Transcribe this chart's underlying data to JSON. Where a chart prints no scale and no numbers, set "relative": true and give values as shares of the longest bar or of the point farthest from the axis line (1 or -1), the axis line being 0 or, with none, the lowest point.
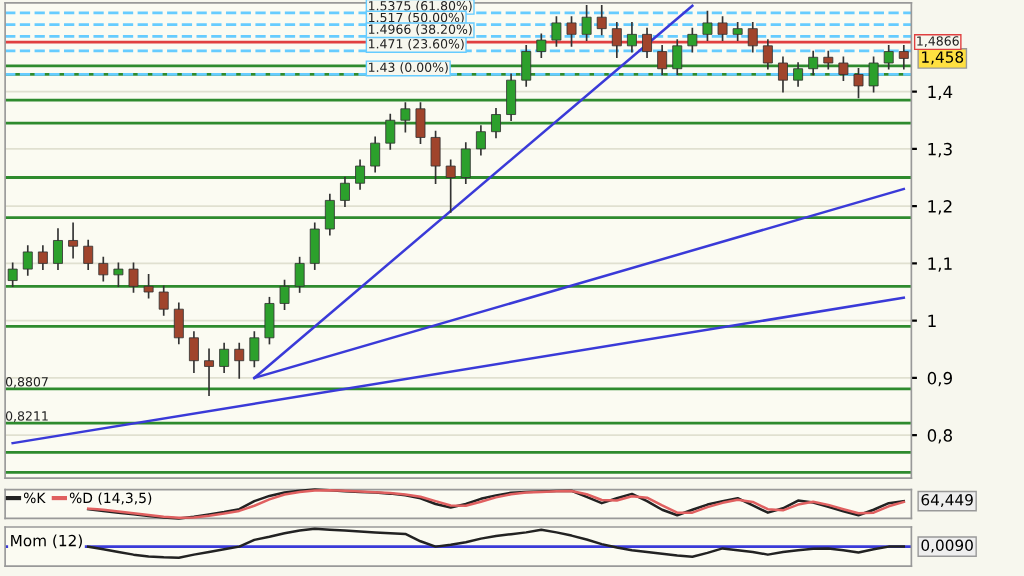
{
  "chart_data": [
    {
      "type": "candlestick",
      "categories": [
        null,
        null,
        null,
        null,
        null,
        null,
        null,
        null,
        null,
        null,
        null,
        null,
        null,
        null,
        null,
        null,
        null,
        null,
        null,
        null,
        null,
        null,
        null,
        null,
        null,
        null,
        null,
        null,
        null,
        null,
        null,
        null,
        null,
        null,
        null,
        null,
        null,
        null,
        null,
        null,
        null,
        null,
        null,
        null,
        null,
        null,
        null,
        null,
        null,
        null,
        null,
        null,
        null,
        null,
        null,
        null,
        null,
        null,
        null,
        null
      ],
      "ohlc": [
        [
          1.07,
          1.1,
          1.06,
          1.09
        ],
        [
          1.09,
          1.13,
          1.08,
          1.12
        ],
        [
          1.12,
          1.13,
          1.09,
          1.1
        ],
        [
          1.1,
          1.16,
          1.09,
          1.14
        ],
        [
          1.14,
          1.17,
          1.11,
          1.13
        ],
        [
          1.13,
          1.14,
          1.09,
          1.1
        ],
        [
          1.1,
          1.11,
          1.07,
          1.08
        ],
        [
          1.08,
          1.1,
          1.06,
          1.09
        ],
        [
          1.09,
          1.1,
          1.05,
          1.06
        ],
        [
          1.06,
          1.08,
          1.04,
          1.05
        ],
        [
          1.05,
          1.06,
          1.01,
          1.02
        ],
        [
          1.02,
          1.03,
          0.96,
          0.97
        ],
        [
          0.97,
          0.98,
          0.91,
          0.93
        ],
        [
          0.93,
          0.95,
          0.87,
          0.92
        ],
        [
          0.92,
          0.96,
          0.91,
          0.95
        ],
        [
          0.95,
          0.96,
          0.9,
          0.93
        ],
        [
          0.93,
          0.98,
          0.92,
          0.97
        ],
        [
          0.97,
          1.04,
          0.96,
          1.03
        ],
        [
          1.03,
          1.07,
          1.02,
          1.06
        ],
        [
          1.06,
          1.11,
          1.05,
          1.1
        ],
        [
          1.1,
          1.17,
          1.09,
          1.16
        ],
        [
          1.16,
          1.22,
          1.15,
          1.21
        ],
        [
          1.21,
          1.25,
          1.2,
          1.24
        ],
        [
          1.24,
          1.28,
          1.23,
          1.27
        ],
        [
          1.27,
          1.32,
          1.26,
          1.31
        ],
        [
          1.31,
          1.36,
          1.3,
          1.35
        ],
        [
          1.35,
          1.38,
          1.33,
          1.37
        ],
        [
          1.37,
          1.38,
          1.31,
          1.32
        ],
        [
          1.32,
          1.33,
          1.24,
          1.27
        ],
        [
          1.27,
          1.28,
          1.19,
          1.25
        ],
        [
          1.25,
          1.31,
          1.24,
          1.3
        ],
        [
          1.3,
          1.34,
          1.29,
          1.33
        ],
        [
          1.33,
          1.37,
          1.32,
          1.36
        ],
        [
          1.36,
          1.43,
          1.35,
          1.42
        ],
        [
          1.42,
          1.48,
          1.41,
          1.47
        ],
        [
          1.47,
          1.5,
          1.46,
          1.49
        ],
        [
          1.49,
          1.53,
          1.48,
          1.52
        ],
        [
          1.52,
          1.53,
          1.48,
          1.5
        ],
        [
          1.5,
          1.55,
          1.49,
          1.53
        ],
        [
          1.53,
          1.55,
          1.5,
          1.51
        ],
        [
          1.51,
          1.52,
          1.46,
          1.48
        ],
        [
          1.48,
          1.52,
          1.47,
          1.5
        ],
        [
          1.5,
          1.51,
          1.46,
          1.47
        ],
        [
          1.47,
          1.48,
          1.43,
          1.44
        ],
        [
          1.44,
          1.49,
          1.43,
          1.48
        ],
        [
          1.48,
          1.51,
          1.47,
          1.5
        ],
        [
          1.5,
          1.54,
          1.49,
          1.52
        ],
        [
          1.52,
          1.53,
          1.49,
          1.5
        ],
        [
          1.5,
          1.52,
          1.49,
          1.51
        ],
        [
          1.51,
          1.52,
          1.47,
          1.48
        ],
        [
          1.48,
          1.49,
          1.44,
          1.45
        ],
        [
          1.45,
          1.46,
          1.4,
          1.42
        ],
        [
          1.42,
          1.45,
          1.41,
          1.44
        ],
        [
          1.44,
          1.47,
          1.43,
          1.46
        ],
        [
          1.46,
          1.47,
          1.44,
          1.45
        ],
        [
          1.45,
          1.46,
          1.42,
          1.43
        ],
        [
          1.43,
          1.44,
          1.39,
          1.41
        ],
        [
          1.41,
          1.46,
          1.4,
          1.45
        ],
        [
          1.45,
          1.48,
          1.44,
          1.47
        ],
        [
          1.47,
          1.48,
          1.44,
          1.458
        ]
      ],
      "colors": [
        "#2ca02c",
        "#2ca02c",
        "#a0442c",
        "#2ca02c",
        "#a0442c",
        "#a0442c",
        "#a0442c",
        "#2ca02c",
        "#a0442c",
        "#a0442c",
        "#a0442c",
        "#a0442c",
        "#a0442c",
        "#a0442c",
        "#2ca02c",
        "#a0442c",
        "#2ca02c",
        "#2ca02c",
        "#2ca02c",
        "#2ca02c",
        "#2ca02c",
        "#2ca02c",
        "#2ca02c",
        "#2ca02c",
        "#2ca02c",
        "#2ca02c",
        "#2ca02c",
        "#a0442c",
        "#a0442c",
        "#a0442c",
        "#2ca02c",
        "#2ca02c",
        "#2ca02c",
        "#2ca02c",
        "#2ca02c",
        "#2ca02c",
        "#2ca02c",
        "#a0442c",
        "#2ca02c",
        "#a0442c",
        "#a0442c",
        "#2ca02c",
        "#a0442c",
        "#a0442c",
        "#2ca02c",
        "#2ca02c",
        "#2ca02c",
        "#a0442c",
        "#2ca02c",
        "#a0442c",
        "#a0442c",
        "#a0442c",
        "#2ca02c",
        "#2ca02c",
        "#a0442c",
        "#a0442c",
        "#a0442c",
        "#2ca02c",
        "#2ca02c",
        "#a0442c"
      ],
      "series": [
        {
          "type": "line",
          "color": "#3a3ad8",
          "values": [
            0.786,
            null,
            null,
            null,
            null,
            null,
            null,
            null,
            null,
            null,
            null,
            null,
            null,
            null,
            null,
            null,
            null,
            null,
            null,
            null,
            null,
            null,
            null,
            null,
            null,
            null,
            null,
            null,
            null,
            null,
            null,
            null,
            null,
            null,
            null,
            null,
            null,
            null,
            null,
            null,
            null,
            null,
            null,
            null,
            null,
            null,
            null,
            null,
            null,
            null,
            null,
            null,
            null,
            null,
            null,
            null,
            null,
            null,
            null,
            1.04
          ]
        },
        {
          "type": "line",
          "color": "#3a3ad8",
          "values": [
            null,
            null,
            null,
            null,
            null,
            null,
            null,
            null,
            null,
            null,
            null,
            null,
            null,
            null,
            null,
            null,
            0.9,
            null,
            null,
            null,
            null,
            null,
            null,
            null,
            null,
            null,
            null,
            null,
            null,
            null,
            null,
            null,
            null,
            null,
            null,
            null,
            null,
            null,
            null,
            null,
            null,
            null,
            null,
            null,
            null,
            null,
            null,
            null,
            null,
            null,
            null,
            null,
            null,
            null,
            null,
            null,
            null,
            null,
            null,
            1.23
          ]
        },
        {
          "type": "line",
          "color": "#3a3ad8",
          "values": [
            null,
            null,
            null,
            null,
            null,
            null,
            null,
            null,
            null,
            null,
            null,
            null,
            null,
            null,
            null,
            null,
            0.9,
            null,
            null,
            null,
            null,
            null,
            null,
            null,
            null,
            null,
            null,
            null,
            null,
            null,
            null,
            null,
            null,
            null,
            null,
            null,
            null,
            null,
            null,
            null,
            null,
            null,
            null,
            null,
            null,
            1.55,
            null,
            null,
            null,
            null,
            null,
            null,
            null,
            null,
            null,
            null,
            null,
            null,
            null,
            null
          ]
        }
      ],
      "ylim": [
        0.725,
        1.555
      ],
      "yticks": [
        {
          "value": 0.8,
          "label": "0,8"
        },
        {
          "value": 0.9,
          "label": "0,9"
        },
        {
          "value": 1,
          "label": "1"
        },
        {
          "value": 1.1,
          "label": "1,1"
        },
        {
          "value": 1.2,
          "label": "1,2"
        },
        {
          "value": 1.3,
          "label": "1,3"
        },
        {
          "value": 1.4,
          "label": "1,4"
        }
      ],
      "grid": "y",
      "ref_lines": [
        {
          "axis": "y",
          "value": 1.445,
          "color": "#2e8b2e"
        },
        {
          "axis": "y",
          "value": 1.43,
          "color": "#2e8b2e"
        },
        {
          "axis": "y",
          "value": 1.385,
          "color": "#2e8b2e"
        },
        {
          "axis": "y",
          "value": 1.345,
          "color": "#2e8b2e"
        },
        {
          "axis": "y",
          "value": 1.25,
          "color": "#2e8b2e"
        },
        {
          "axis": "y",
          "value": 1.18,
          "color": "#2e8b2e"
        },
        {
          "axis": "y",
          "value": 1.06,
          "color": "#2e8b2e"
        },
        {
          "axis": "y",
          "value": 0.99,
          "color": "#2e8b2e"
        },
        {
          "axis": "y",
          "value": 0.8807,
          "color": "#2e8b2e",
          "label": "0,8807"
        },
        {
          "axis": "y",
          "value": 0.8211,
          "color": "#2e8b2e",
          "label": "0,8211"
        },
        {
          "axis": "y",
          "value": 0.77,
          "color": "#2e8b2e"
        },
        {
          "axis": "y",
          "value": 0.735,
          "color": "#2e8b2e"
        },
        {
          "axis": "y",
          "value": 1.4866,
          "color": "#e04040",
          "label": "1,4866"
        },
        {
          "axis": "y",
          "value": 1.5375,
          "color": "#66ccff",
          "line_style": "dashed",
          "label": "1.5375 (61.80%)"
        },
        {
          "axis": "y",
          "value": 1.517,
          "color": "#66ccff",
          "line_style": "dashed",
          "label": "1.517 (50.00%)"
        },
        {
          "axis": "y",
          "value": 1.4966,
          "color": "#66ccff",
          "line_style": "dashed",
          "label": "1.4966 (38.20%)"
        },
        {
          "axis": "y",
          "value": 1.471,
          "color": "#66ccff",
          "line_style": "dashed",
          "label": "1.471 (23.60%)"
        },
        {
          "axis": "y",
          "value": 1.43,
          "color": "#66ccff",
          "line_style": "dashed",
          "label": "1.43 (0.00%)"
        }
      ],
      "annotations": [
        "1,458"
      ]
    },
    {
      "type": "line",
      "relative": true,
      "legend": "top left",
      "categories": [
        null,
        null,
        null,
        null,
        null,
        null,
        null,
        null,
        null,
        null,
        null,
        null,
        null,
        null,
        null,
        null,
        null,
        null,
        null,
        null,
        null,
        null,
        null,
        null,
        null,
        null,
        null,
        null,
        null,
        null,
        null,
        null,
        null,
        null,
        null,
        null,
        null,
        null,
        null,
        null,
        null,
        null,
        null,
        null,
        null,
        null,
        null,
        null,
        null,
        null,
        null,
        null,
        null,
        null,
        null,
        null,
        null,
        null,
        null,
        null
      ],
      "series": [
        {
          "name": "%K",
          "color": "#222222",
          "values": [
            null,
            null,
            null,
            null,
            null,
            0.32,
            0.26,
            0.2,
            0.14,
            0.08,
            0.03,
            0,
            0.06,
            0.14,
            0.22,
            0.32,
            0.6,
            0.78,
            0.9,
            0.96,
            1,
            0.98,
            0.94,
            0.92,
            0.9,
            0.86,
            0.8,
            0.7,
            0.5,
            0.38,
            0.5,
            0.68,
            0.8,
            0.89,
            0.92,
            0.93,
            0.95,
            0.96,
            0.75,
            0.53,
            0.7,
            0.85,
            0.6,
            0.3,
            0.11,
            0.3,
            0.48,
            0.6,
            0.7,
            0.45,
            0.2,
            0.35,
            0.62,
            0.55,
            0.4,
            0.25,
            0.11,
            0.3,
            0.53,
            0.6
          ]
        },
        {
          "name": "%D (14,3,5)",
          "color": "#e06060",
          "values": [
            null,
            null,
            null,
            null,
            null,
            0.34,
            0.3,
            0.24,
            0.18,
            0.12,
            0.06,
            0.02,
            0.03,
            0.09,
            0.17,
            0.26,
            0.44,
            0.66,
            0.83,
            0.92,
            0.97,
            0.98,
            0.96,
            0.93,
            0.91,
            0.88,
            0.83,
            0.75,
            0.6,
            0.45,
            0.44,
            0.58,
            0.73,
            0.84,
            0.9,
            0.92,
            0.94,
            0.95,
            0.84,
            0.64,
            0.62,
            0.77,
            0.72,
            0.45,
            0.2,
            0.2,
            0.39,
            0.54,
            0.65,
            0.57,
            0.32,
            0.28,
            0.48,
            0.58,
            0.47,
            0.32,
            0.18,
            0.2,
            0.42,
            0.57
          ]
        }
      ],
      "annotations": [
        "64,449"
      ]
    },
    {
      "type": "line",
      "relative": true,
      "title": "Mom (12)",
      "categories": [
        null,
        null,
        null,
        null,
        null,
        null,
        null,
        null,
        null,
        null,
        null,
        null,
        null,
        null,
        null,
        null,
        null,
        null,
        null,
        null,
        null,
        null,
        null,
        null,
        null,
        null,
        null,
        null,
        null,
        null,
        null,
        null,
        null,
        null,
        null,
        null,
        null,
        null,
        null,
        null,
        null,
        null,
        null,
        null,
        null,
        null,
        null,
        null,
        null,
        null,
        null,
        null,
        null,
        null,
        null,
        null,
        null,
        null,
        null,
        null
      ],
      "series": [
        {
          "color": "#222222",
          "values": [
            null,
            null,
            null,
            null,
            null,
            0,
            -0.15,
            -0.3,
            -0.45,
            -0.55,
            -0.6,
            -0.62,
            -0.45,
            -0.3,
            -0.15,
            0,
            0.38,
            0.55,
            0.75,
            0.9,
            1,
            0.95,
            0.9,
            0.85,
            0.8,
            0.75,
            0.71,
            0.3,
            0,
            0.1,
            0.25,
            0.45,
            0.6,
            0.7,
            0.8,
            0.95,
            0.8,
            0.62,
            0.4,
            0.14,
            -0.05,
            -0.2,
            -0.3,
            -0.4,
            -0.5,
            -0.57,
            -0.35,
            -0.1,
            -0.2,
            -0.3,
            -0.45,
            -0.3,
            -0.2,
            -0.12,
            -0.1,
            -0.2,
            -0.33,
            -0.15,
            0,
            0
          ]
        }
      ],
      "ref_lines": [
        {
          "axis": "y",
          "value": 0,
          "color": "#3a3ad8"
        }
      ],
      "annotations": [
        "0,0090"
      ]
    }
  ]
}
